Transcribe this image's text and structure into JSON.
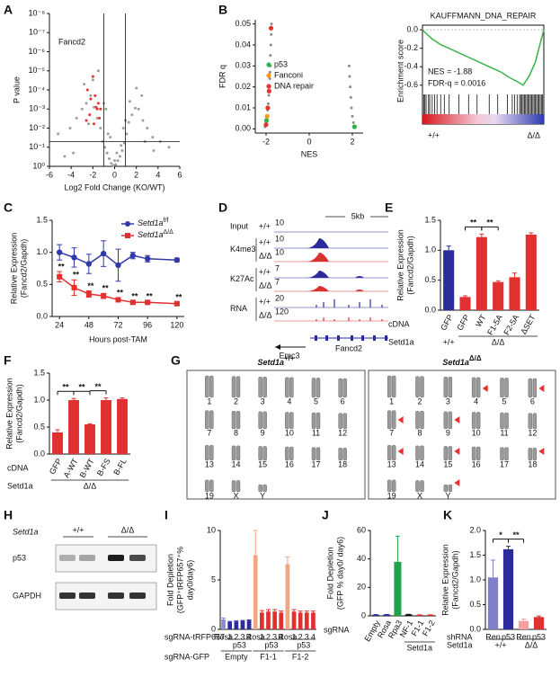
{
  "panel_labels": [
    "A",
    "B",
    "C",
    "D",
    "E",
    "F",
    "G",
    "H",
    "I",
    "J",
    "K"
  ],
  "chart_data": [
    {
      "type": "scatter",
      "log_y": true,
      "xlabel": "Log2 Fold Change (KO/WT)",
      "ylabel": "P value",
      "xlim": [
        -6,
        6
      ],
      "xticks": [
        -6,
        -4,
        -2,
        0,
        2,
        4,
        6
      ],
      "ylim": [
        1,
        1e-08
      ],
      "yticks": [
        {
          "value": 1e-08,
          "label": "10⁻⁸"
        },
        {
          "value": 1e-07,
          "label": "10⁻⁷"
        },
        {
          "value": 1e-06,
          "label": "10⁻⁶"
        },
        {
          "value": 1e-05,
          "label": "10⁻⁵"
        },
        {
          "value": 0.0001,
          "label": "10⁻⁴"
        },
        {
          "value": 0.001,
          "label": "10⁻³"
        },
        {
          "value": 0.01,
          "label": "10⁻²"
        },
        {
          "value": 0.1,
          "label": "10⁻¹"
        },
        {
          "value": 1,
          "label": "10⁰"
        }
      ],
      "thresholds_x": [
        -1,
        1
      ],
      "threshold_y": 0.05,
      "annotation": "Fancd2",
      "points": [
        {
          "color": "#9e9e9e",
          "x": [
            -5.2,
            -4.1,
            -3.5,
            -3.0,
            -2.6,
            -2.2,
            -1.9,
            -1.6,
            -1.3,
            -1.1,
            -0.9,
            -0.7,
            -0.5,
            -0.3,
            -0.1,
            0.1,
            0.3,
            0.5,
            0.7,
            0.9,
            1.1,
            1.3,
            1.6,
            1.9,
            2.2,
            2.6,
            3.0,
            3.5,
            4.2,
            5.0,
            -2.8,
            -2.0,
            -1.5,
            -0.8,
            -0.4,
            0.2,
            0.6,
            1.0,
            1.4,
            2.0,
            2.5,
            -3.8,
            3.6,
            -1.0,
            0.0,
            -0.6,
            0.8,
            -2.4,
            2.8,
            -4.6
          ],
          "y": [
            0.02,
            0.01,
            0.003,
            0.001,
            0.0005,
            0.0002,
            0.0008,
            0.003,
            0.01,
            0.05,
            0.1,
            0.2,
            0.4,
            0.7,
            0.9,
            0.8,
            0.5,
            0.3,
            0.15,
            0.06,
            0.02,
            0.005,
            0.002,
            0.0009,
            0.001,
            0.004,
            0.01,
            0.03,
            0.05,
            0.1,
            5e-05,
            3e-05,
            1e-05,
            0.001,
            0.03,
            0.2,
            0.08,
            0.004,
            0.0004,
            8e-05,
            0.0002,
            0.2,
            0.15,
            0.0005,
            0.5,
            0.02,
            0.01,
            0.006,
            0.05,
            0.3
          ]
        },
        {
          "color": "#e8312f",
          "x": [
            -2.5,
            -2.2,
            -2.0,
            -1.8,
            -1.6,
            -1.4,
            -2.3,
            -1.9,
            -1.7,
            -1.5,
            -2.6,
            -1.3
          ],
          "y": [
            0.0001,
            0.0003,
            2e-05,
            0.0002,
            0.001,
            0.003,
            0.002,
            0.006,
            0.0008,
            0.0005,
            0.004,
            0.001
          ]
        }
      ]
    },
    {
      "type": "scatter",
      "xlabel": "NES",
      "ylabel": "FDR q",
      "xlim": [
        -2.5,
        2.5
      ],
      "xticks": [
        -2,
        0,
        2
      ],
      "ylim": [
        -0.002,
        0.052
      ],
      "yticks": [
        {
          "value": 0,
          "label": "0.00"
        },
        0.01,
        0.02,
        0.03,
        0.04,
        0.05
      ],
      "points": [
        {
          "color": "#8a8a8a",
          "x": [
            -1.75,
            -1.76,
            -1.78,
            -1.8,
            -1.8,
            -1.82,
            -1.83,
            -1.85,
            -1.87,
            -1.9,
            -1.93,
            -1.96,
            -2.0,
            -2.05,
            1.85,
            1.87,
            1.9,
            1.93,
            1.96,
            2.0,
            2.05
          ],
          "y": [
            0.05,
            0.045,
            0.04,
            0.035,
            0.03,
            0.027,
            0.024,
            0.02,
            0.016,
            0.012,
            0.009,
            0.006,
            0.003,
            0.001,
            0.03,
            0.025,
            0.02,
            0.015,
            0.01,
            0.006,
            0.003
          ]
        }
      ],
      "series": [
        {
          "name": "p53",
          "color": "#2db34a",
          "x": [
            -1.98,
            2.1
          ],
          "y": [
            0.004,
            0.001
          ]
        },
        {
          "name": "Fanconi",
          "color": "#f39c12",
          "x": [
            -1.95
          ],
          "y": [
            0.006
          ]
        },
        {
          "name": "DNA repair",
          "color": "#e8312f",
          "x": [
            -1.77,
            -1.86,
            -2.0,
            -1.92
          ],
          "y": [
            0.048,
            0.018,
            0.002,
            0.01
          ]
        }
      ]
    },
    {
      "type": "line",
      "title": "KAUFFMANN_DNA_REPAIR",
      "ylabel": "Enrichment score",
      "ylim": [
        -0.7,
        0.05
      ],
      "yticks": [
        {
          "value": 0,
          "label": "0.0"
        },
        -0.2,
        -0.4,
        -0.6
      ],
      "xlim": [
        0,
        100
      ],
      "x": [
        0,
        3,
        8,
        15,
        25,
        35,
        45,
        55,
        65,
        72,
        78,
        83,
        88,
        93,
        97,
        100
      ],
      "series": [
        {
          "color": "#3bb34a",
          "values": [
            0,
            -0.04,
            -0.1,
            -0.16,
            -0.22,
            -0.28,
            -0.34,
            -0.4,
            -0.46,
            -0.52,
            -0.56,
            -0.6,
            -0.5,
            -0.35,
            -0.15,
            0
          ]
        }
      ],
      "hits": [
        1,
        2,
        3,
        5,
        6,
        8,
        10,
        12,
        15,
        18,
        22,
        30,
        38,
        45,
        55,
        62,
        70,
        74,
        76,
        78,
        80,
        81,
        82,
        83,
        84,
        85,
        86,
        87,
        88,
        89,
        90,
        91,
        92,
        93,
        94,
        95,
        96,
        97,
        98,
        99
      ],
      "stats": [
        "NES = -1.88",
        "FDR-q = 0.0016"
      ],
      "left_label": "+/+",
      "right_label": "Δ/Δ"
    },
    {
      "type": "line",
      "xlabel": "Hours post-TAM",
      "ylabel": [
        "Relative Expression",
        "(Fancd2/Gapdh)"
      ],
      "xlim": [
        18,
        126
      ],
      "xticks": [
        24,
        48,
        72,
        96,
        120
      ],
      "ylim": [
        0,
        1.5
      ],
      "yticks": [
        {
          "value": 0,
          "label": "0.0"
        },
        0.5,
        {
          "value": 1,
          "label": "1.0"
        },
        1.5
      ],
      "x": [
        24,
        36,
        48,
        60,
        72,
        84,
        96,
        120
      ],
      "series": [
        {
          "name": "Setd1a",
          "genotype": "f/f",
          "color": "#2f3aa8",
          "marker": "circle",
          "values": [
            1.0,
            0.92,
            0.82,
            0.98,
            0.8,
            0.95,
            0.9,
            0.88
          ],
          "errors": [
            0.12,
            0.15,
            0.15,
            0.2,
            0.25,
            0.05,
            0.05,
            0.03
          ]
        },
        {
          "name": "Setd1a",
          "genotype": "Δ/Δ",
          "color": "#e03030",
          "marker": "square",
          "values": [
            0.62,
            0.45,
            0.35,
            0.32,
            0.26,
            0.22,
            0.22,
            0.2
          ],
          "errors": [
            0.08,
            0.12,
            0.05,
            0.04,
            0.03,
            0.02,
            0.02,
            0.02
          ],
          "significance": [
            "**",
            "**",
            "**",
            "**",
            "**",
            "**",
            "**",
            "**"
          ]
        }
      ]
    },
    {
      "type": "bar",
      "ylabel": [
        "Relative Expression",
        "(Fancd2/Gapdh)"
      ],
      "ylim": [
        0,
        1.5
      ],
      "yticks": [
        {
          "value": 0,
          "label": "0.0"
        },
        0.5,
        {
          "value": 1,
          "label": "1.0"
        },
        1.5
      ],
      "categories": [
        "GFP",
        "GFP",
        "WT",
        "F1-5A",
        "F2-5A",
        "ΔSET"
      ],
      "values": [
        1.0,
        0.22,
        1.22,
        0.47,
        0.55,
        1.26
      ],
      "errors": [
        0.07,
        0.02,
        0.05,
        0.02,
        0.07,
        0.03
      ],
      "colors": [
        "#2b2b9b",
        "#e03030",
        "#e03030",
        "#e03030",
        "#e03030",
        "#e03030"
      ],
      "comparisons": [
        {
          "between": [
            1,
            2
          ],
          "label": "**"
        },
        {
          "between": [
            2,
            3
          ],
          "label": "**"
        }
      ],
      "rows": [
        {
          "label": "cDNA"
        },
        {
          "label": "Setd1a",
          "groups": [
            {
              "label": "+/+",
              "first": 0,
              "count": 1
            },
            {
              "label": "Δ/Δ",
              "first": 1,
              "count": 5
            }
          ]
        }
      ]
    },
    {
      "type": "bar",
      "ylabel": [
        "Relative Expression",
        "(Fancd2/Gapdh)"
      ],
      "ylim": [
        0,
        1.5
      ],
      "yticks": [
        {
          "value": 0,
          "label": "0.0"
        },
        0.5,
        {
          "value": 1,
          "label": "1.0"
        },
        1.5
      ],
      "categories": [
        "GFP",
        "A-WT",
        "B-WT",
        "B-FS",
        "B-FL"
      ],
      "values": [
        0.4,
        1.0,
        0.55,
        1.0,
        1.02
      ],
      "errors": [
        0.05,
        0.03,
        0.01,
        0.04,
        0.02
      ],
      "colors": [
        "#e03030",
        "#e03030",
        "#e03030",
        "#e03030",
        "#e03030"
      ],
      "comparisons": [
        {
          "between": [
            0,
            1
          ],
          "label": "**"
        },
        {
          "between": [
            1,
            2
          ],
          "label": "**"
        },
        {
          "between": [
            2,
            3
          ],
          "label": "**"
        }
      ],
      "rows": [
        {
          "label": "cDNA"
        },
        {
          "label": "Setd1a",
          "groups": [
            {
              "label": "Δ/Δ",
              "first": 0,
              "count": 5
            }
          ]
        }
      ]
    },
    {
      "type": "bar",
      "ylabel": [
        "Fold Depletion",
        "(GFP⁺tRFP657⁺%",
        "day0/day6)"
      ],
      "ylim": [
        0,
        10
      ],
      "yticks": [
        0,
        5,
        10
      ],
      "categories": [
        "Rosa",
        "1",
        "2",
        "3",
        "4",
        "Rosa",
        "1",
        "2",
        "3",
        "4",
        "Rosa",
        "1",
        "2",
        "3",
        "4"
      ],
      "values": [
        1.0,
        0.75,
        0.8,
        0.85,
        0.9,
        7.5,
        1.7,
        1.8,
        1.8,
        1.7,
        6.6,
        1.8,
        1.7,
        1.7,
        1.7
      ],
      "errors": [
        0.15,
        0.05,
        0.05,
        0.05,
        0.05,
        2.5,
        0.2,
        0.2,
        0.2,
        0.15,
        0.7,
        0.2,
        0.15,
        0.15,
        0.15
      ],
      "colors": [
        "#8a8ad0",
        "#2b2b9b",
        "#2b2b9b",
        "#2b2b9b",
        "#2b2b9b",
        "#f4a582",
        "#e03030",
        "#e03030",
        "#e03030",
        "#e03030",
        "#f4a582",
        "#e03030",
        "#e03030",
        "#e03030",
        "#e03030"
      ],
      "rows": [
        {
          "label": "sgRNA-tRFP657"
        },
        {
          "groups": [
            {
              "label": "p53",
              "first": 1,
              "count": 4
            },
            {
              "label": "p53",
              "first": 6,
              "count": 4
            },
            {
              "label": "p53",
              "first": 11,
              "count": 4
            }
          ]
        },
        {
          "label": "sgRNA-GFP",
          "groups": [
            {
              "label": "Empty",
              "first": 0,
              "count": 5
            },
            {
              "label": "F1-1",
              "first": 5,
              "count": 5
            },
            {
              "label": "F1-2",
              "first": 10,
              "count": 5
            }
          ]
        }
      ]
    },
    {
      "type": "bar",
      "ylabel": [
        "Fold Depletion",
        "(GFP % day0/ day6)"
      ],
      "ylim": [
        0,
        60
      ],
      "yticks": [
        0,
        20,
        40,
        60
      ],
      "categories": [
        "Empty",
        "Rosa",
        "Rpa3",
        "NF-1",
        "F1-1",
        "F1-2"
      ],
      "values": [
        0.8,
        0.9,
        38,
        1.0,
        0.7,
        0.7
      ],
      "errors": [
        0.1,
        0.1,
        18,
        0.1,
        0.1,
        0.1
      ],
      "colors": [
        "#2b2b9b",
        "#2b2b9b",
        "#1fa34a",
        "#111111",
        "#e03030",
        "#e03030"
      ],
      "rows": [
        {
          "label": "sgRNA"
        },
        {
          "groups": [
            {
              "label": "Setd1a",
              "first": 3,
              "count": 3
            }
          ]
        }
      ]
    },
    {
      "type": "bar",
      "ylabel": [
        "Relative Expression",
        "(Fancd2/Gapdh)"
      ],
      "ylim": [
        0,
        2
      ],
      "yticks": [
        {
          "value": 0,
          "label": "0.0"
        },
        0.5,
        {
          "value": 1,
          "label": "1.0"
        },
        1.5,
        {
          "value": 2,
          "label": "2.0"
        }
      ],
      "categories": [
        "Ren",
        "p53",
        "Ren",
        "p53"
      ],
      "values": [
        1.05,
        1.62,
        0.17,
        0.25
      ],
      "errors": [
        0.35,
        0.06,
        0.04,
        0.02
      ],
      "colors": [
        "#8080c8",
        "#2b2b9b",
        "#f4a0a0",
        "#e03030"
      ],
      "comparisons": [
        {
          "between": [
            0,
            1
          ],
          "label": "*"
        },
        {
          "between": [
            1,
            2
          ],
          "label": "**"
        }
      ],
      "rows": [
        {
          "label": "shRNA"
        },
        {
          "label": "Setd1a",
          "groups": [
            {
              "label": "+/+",
              "first": 0,
              "count": 2
            },
            {
              "label": "Δ/Δ",
              "first": 2,
              "count": 2
            }
          ]
        }
      ]
    }
  ],
  "tracks_panel": {
    "scale_bar": "5kb",
    "tracks": [
      {
        "label": "Input",
        "genotypes": [
          "+/+"
        ],
        "scales": [
          10
        ]
      },
      {
        "label": "K4me3",
        "genotypes": [
          "+/+",
          "Δ/Δ"
        ],
        "scales": [
          10,
          10
        ]
      },
      {
        "label": "K27Ac",
        "genotypes": [
          "+/+",
          "Δ/Δ"
        ],
        "scales": [
          7,
          7
        ]
      },
      {
        "label": "RNA",
        "genotypes": [
          "+/+",
          "Δ/Δ"
        ],
        "scales": [
          20,
          120
        ]
      }
    ],
    "genes": [
      "Emc3",
      "Fancd2"
    ]
  },
  "karyotype": {
    "titles": [
      {
        "gene": "Setd1a",
        "genotype": "+/+"
      },
      {
        "gene": "Setd1a",
        "genotype": "Δ/Δ"
      }
    ],
    "chromosomes": [
      "1",
      "2",
      "3",
      "4",
      "5",
      "6",
      "7",
      "8",
      "9",
      "10",
      "11",
      "12",
      "13",
      "14",
      "15",
      "16",
      "17",
      "18",
      "19",
      "X",
      "Y"
    ]
  },
  "western": {
    "gene": "Setd1a",
    "genotypes": [
      "+/+",
      "Δ/Δ"
    ],
    "proteins": [
      "p53",
      "GAPDH"
    ]
  }
}
